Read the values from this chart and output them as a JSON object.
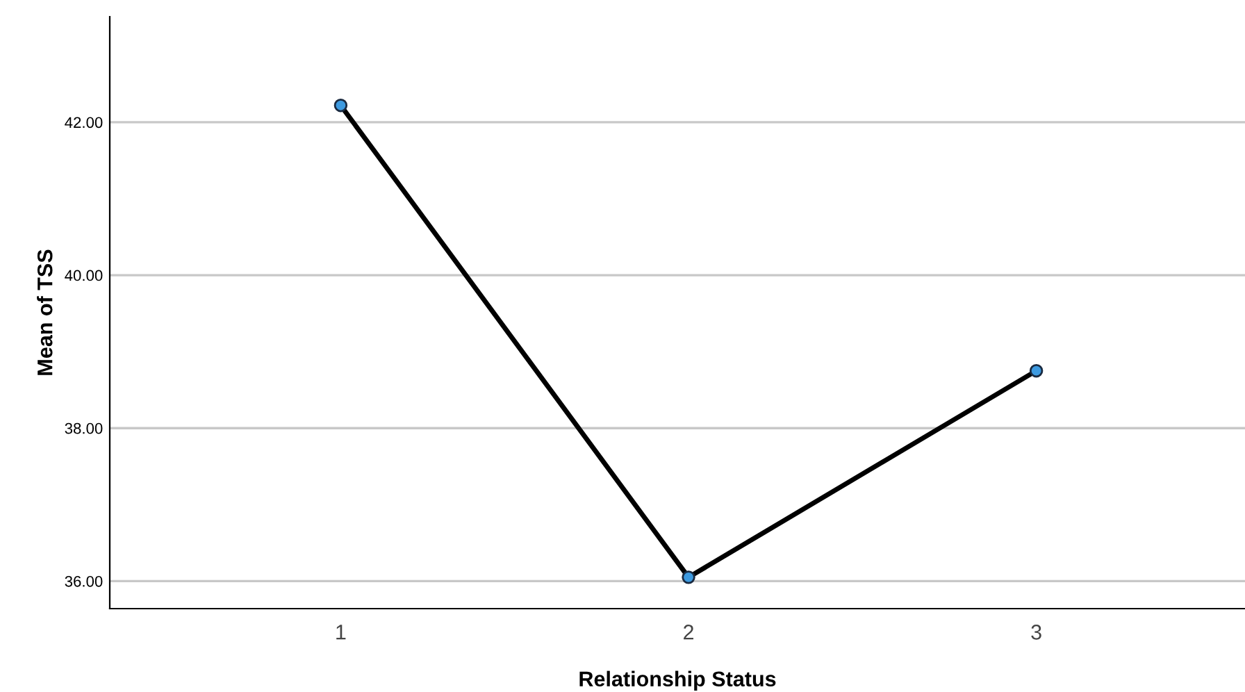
{
  "chart_data": {
    "type": "line",
    "xlabel": "Relationship Status",
    "ylabel": "Mean of TSS",
    "categories": [
      "1",
      "2",
      "3"
    ],
    "series": [
      {
        "color": "#000000",
        "values": [
          42.22,
          36.05,
          38.75
        ]
      }
    ],
    "ylim": [
      35.64,
      43.38
    ],
    "yticks": [
      {
        "value": 36,
        "label": "36.00"
      },
      {
        "value": 38,
        "label": "38.00"
      },
      {
        "value": 40,
        "label": "40.00"
      },
      {
        "value": 42,
        "label": "42.00"
      }
    ],
    "grid": "y",
    "marker": "circle",
    "line_style": "solid",
    "legend": false
  }
}
